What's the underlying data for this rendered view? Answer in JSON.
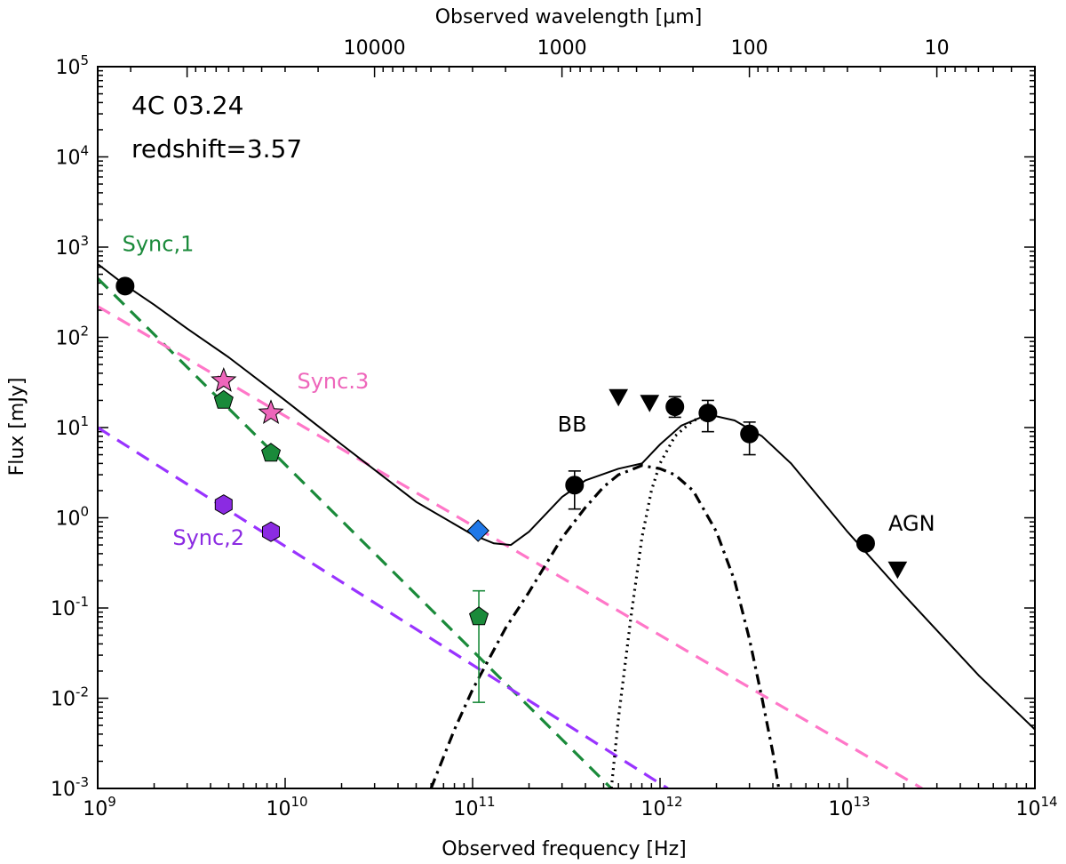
{
  "chart_data": {
    "type": "scatter",
    "xlabel": "Observed frequency [Hz]",
    "ylabel": "Flux [mJy]",
    "top_xlabel": "Observed wavelength [μm]",
    "x_scale": "log",
    "y_scale": "log",
    "xlim": [
      1000000000.0,
      100000000000000.0
    ],
    "ylim": [
      0.001,
      100000.0
    ],
    "x_ticks": [
      {
        "value": 1000000000.0,
        "base": "10",
        "exp": "9"
      },
      {
        "value": 10000000000.0,
        "base": "10",
        "exp": "10"
      },
      {
        "value": 100000000000.0,
        "base": "10",
        "exp": "11"
      },
      {
        "value": 1000000000000.0,
        "base": "10",
        "exp": "12"
      },
      {
        "value": 10000000000000.0,
        "base": "10",
        "exp": "13"
      },
      {
        "value": 100000000000000.0,
        "base": "10",
        "exp": "14"
      }
    ],
    "y_ticks": [
      {
        "value": 0.001,
        "base": "10",
        "exp": "-3"
      },
      {
        "value": 0.01,
        "base": "10",
        "exp": "-2"
      },
      {
        "value": 0.1,
        "base": "10",
        "exp": "-1"
      },
      {
        "value": 1.0,
        "base": "10",
        "exp": "0"
      },
      {
        "value": 10.0,
        "base": "10",
        "exp": "1"
      },
      {
        "value": 100.0,
        "base": "10",
        "exp": "2"
      },
      {
        "value": 1000.0,
        "base": "10",
        "exp": "3"
      },
      {
        "value": 10000.0,
        "base": "10",
        "exp": "4"
      },
      {
        "value": 100000.0,
        "base": "10",
        "exp": "5"
      }
    ],
    "top_ticks": [
      {
        "wavelength_um": 10000,
        "label": "10000"
      },
      {
        "wavelength_um": 1000,
        "label": "1000"
      },
      {
        "wavelength_um": 100,
        "label": "100"
      },
      {
        "wavelength_um": 10,
        "label": "10"
      }
    ],
    "annotations": [
      "4C 03.24",
      "redshift=3.57"
    ],
    "component_labels": [
      {
        "text": "Sync,1",
        "x": 2100000000.0,
        "y": 900,
        "color": "#1a8a3a"
      },
      {
        "text": "Sync.3",
        "x": 18000000000.0,
        "y": 27,
        "color": "#ee66bb"
      },
      {
        "text": "Sync,2",
        "x": 3900000000.0,
        "y": 0.5,
        "color": "#8b2be2"
      },
      {
        "text": "BB",
        "x": 340000000000.0,
        "y": 9,
        "color": "#000000"
      },
      {
        "text": "AGN",
        "x": 22000000000000.0,
        "y": 0.72,
        "color": "#000000"
      }
    ],
    "series": [
      {
        "component": "sync1",
        "kind": "line",
        "style": "dashed",
        "color": "#1a8a3a",
        "x": [
          1000000000.0,
          550000000000.0
        ],
        "y": [
          450,
          0.001
        ]
      },
      {
        "component": "sync3",
        "kind": "line",
        "style": "dashed",
        "color": "#ff77c8",
        "x": [
          1000000000.0,
          25000000000000.0
        ],
        "y": [
          220,
          0.001
        ]
      },
      {
        "component": "sync2",
        "kind": "line",
        "style": "dashed",
        "color": "#9933ff",
        "x": [
          1000000000.0,
          1100000000000.0
        ],
        "y": [
          10,
          0.001
        ]
      },
      {
        "component": "bb-cold",
        "kind": "line",
        "style": "dashdot",
        "color": "#000000",
        "x": [
          60000000000.0,
          80000000000.0,
          100000000000.0,
          150000000000.0,
          200000000000.0,
          300000000000.0,
          400000000000.0,
          500000000000.0,
          600000000000.0,
          700000000000.0,
          800000000000.0,
          1000000000000.0,
          1200000000000.0,
          1500000000000.0,
          2000000000000.0,
          2500000000000.0,
          3000000000000.0,
          3500000000000.0,
          4000000000000.0,
          4300000000000.0
        ],
        "y": [
          0.001,
          0.0045,
          0.0125,
          0.06,
          0.15,
          0.6,
          1.3,
          2.2,
          3.0,
          3.4,
          3.8,
          3.5,
          3.0,
          2.0,
          0.7,
          0.2,
          0.045,
          0.01,
          0.0025,
          0.001
        ]
      },
      {
        "component": "bb-warm",
        "kind": "line",
        "style": "dotted",
        "color": "#000000",
        "x": [
          550000000000.0,
          600000000000.0,
          700000000000.0,
          800000000000.0,
          900000000000.0,
          1000000000000.0,
          1200000000000.0,
          1500000000000.0,
          2000000000000.0
        ],
        "y": [
          0.001,
          0.006,
          0.08,
          0.6,
          2.0,
          4.0,
          8.0,
          12.0,
          14.0
        ]
      },
      {
        "component": "total",
        "kind": "line",
        "style": "solid",
        "color": "#000000",
        "x": [
          1000000000.0,
          1400000000.0,
          2000000000.0,
          3000000000.0,
          5000000000.0,
          10000000000.0,
          20000000000.0,
          50000000000.0,
          100000000000.0,
          130000000000.0,
          160000000000.0,
          200000000000.0,
          300000000000.0,
          400000000000.0,
          600000000000.0,
          800000000000.0,
          1000000000000.0,
          1300000000000.0,
          1800000000000.0,
          2500000000000.0,
          3500000000000.0,
          5000000000000.0,
          10000000000000.0,
          20000000000000.0,
          50000000000000.0,
          100000000000000.0
        ],
        "y": [
          650,
          380,
          230,
          125,
          60,
          20,
          6.5,
          1.5,
          0.65,
          0.52,
          0.5,
          0.7,
          1.7,
          2.6,
          3.5,
          4.0,
          6.5,
          10.5,
          14,
          12,
          8,
          4,
          0.7,
          0.14,
          0.018,
          0.0045
        ]
      },
      {
        "component": "sync1-points",
        "kind": "points",
        "marker": "pentagon",
        "color": "#1a8a3a",
        "points": [
          {
            "x": 4700000000.0,
            "y": 20
          },
          {
            "x": 8400000000.0,
            "y": 5.2
          },
          {
            "x": 108000000000.0,
            "y": 0.08,
            "err_low": 0.009,
            "err_high": 0.155
          }
        ]
      },
      {
        "component": "sync3-points",
        "kind": "points",
        "marker": "star",
        "color": "#ee66bb",
        "points": [
          {
            "x": 4700000000.0,
            "y": 33
          },
          {
            "x": 8400000000.0,
            "y": 14.5
          }
        ]
      },
      {
        "component": "sync2-points",
        "kind": "points",
        "marker": "hexagon",
        "color": "#8b2be2",
        "points": [
          {
            "x": 4700000000.0,
            "y": 1.4
          },
          {
            "x": 8400000000.0,
            "y": 0.7
          }
        ]
      },
      {
        "component": "diamond-point",
        "kind": "points",
        "marker": "diamond",
        "color": "#1f78e8",
        "points": [
          {
            "x": 107000000000.0,
            "y": 0.72
          }
        ]
      },
      {
        "component": "measured-points",
        "kind": "points",
        "marker": "circle",
        "color": "#000000",
        "points": [
          {
            "x": 1400000000.0,
            "y": 370
          },
          {
            "x": 350000000000.0,
            "y": 2.3,
            "err_low": 1.25,
            "err_high": 3.3
          },
          {
            "x": 1200000000000.0,
            "y": 17,
            "err_low": 13,
            "err_high": 22
          },
          {
            "x": 1800000000000.0,
            "y": 14.5,
            "err_low": 9,
            "err_high": 20
          },
          {
            "x": 3000000000000.0,
            "y": 8.5,
            "err_low": 5,
            "err_high": 11.5
          },
          {
            "x": 12500000000000.0,
            "y": 0.52
          }
        ]
      },
      {
        "component": "upper-limits",
        "kind": "points",
        "marker": "triangle-down",
        "color": "#000000",
        "points": [
          {
            "x": 600000000000.0,
            "y": 22
          },
          {
            "x": 880000000000.0,
            "y": 19
          },
          {
            "x": 18500000000000.0,
            "y": 0.27
          }
        ]
      }
    ]
  }
}
